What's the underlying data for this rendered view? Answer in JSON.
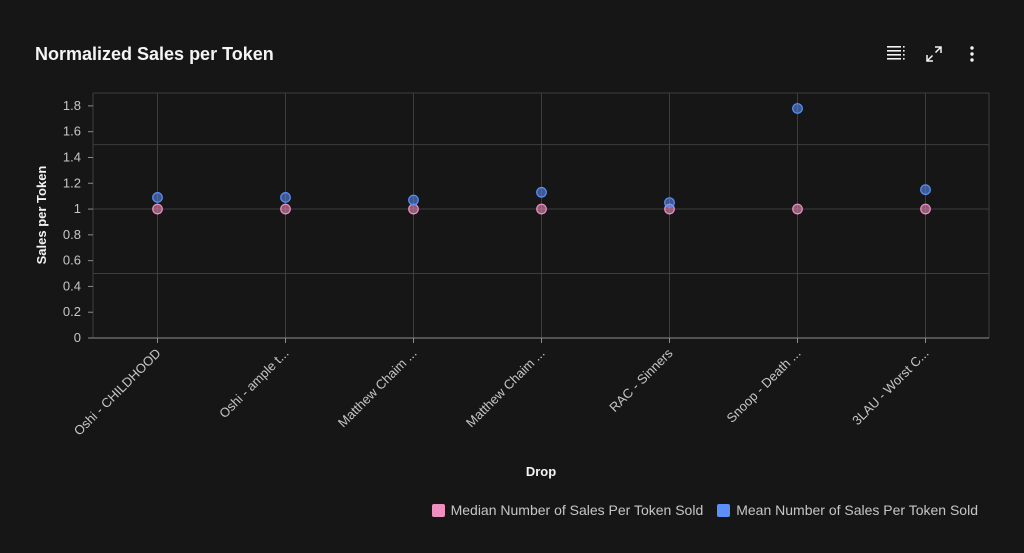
{
  "card": {
    "title": "Normalized Sales per Token"
  },
  "toolbar": {
    "table_icon": "table-view-icon",
    "expand_icon": "maximize-icon",
    "menu_icon": "overflow-menu-icon"
  },
  "colors": {
    "median": "#ee8fbf",
    "mean": "#5b8ff9",
    "grid": "#3d3d3d",
    "axis_text": "#c6c6c6"
  },
  "chart_data": {
    "type": "scatter",
    "title": "Normalized Sales per Token",
    "xlabel": "Drop",
    "ylabel": "Sales per Token",
    "ylim": [
      0,
      1.9
    ],
    "yticks": [
      0,
      0.2,
      0.4,
      0.6,
      0.8,
      1,
      1.2,
      1.4,
      1.6,
      1.8
    ],
    "ytick_labels": [
      "0",
      "0.2",
      "0.4",
      "0.6",
      "0.8",
      "1",
      "1.2",
      "1.4",
      "1.6",
      "1.8"
    ],
    "categories": [
      "Oshi - CHILDHOOD",
      "Oshi - ample t...",
      "Matthew Chaim ...",
      "Matthew Chaim ...",
      "RAC - Sinners",
      "Snoop - Death ...",
      "3LAU - Worst C..."
    ],
    "series": [
      {
        "name": "Median Number of Sales Per Token Sold",
        "color": "#ee8fbf",
        "values": [
          1,
          1,
          1,
          1,
          1,
          1,
          1
        ]
      },
      {
        "name": "Mean Number of Sales Per Token Sold",
        "color": "#5b8ff9",
        "values": [
          1.09,
          1.09,
          1.07,
          1.13,
          1.05,
          1.78,
          1.15
        ]
      }
    ],
    "legend_position": "bottom-right",
    "grid": true
  }
}
